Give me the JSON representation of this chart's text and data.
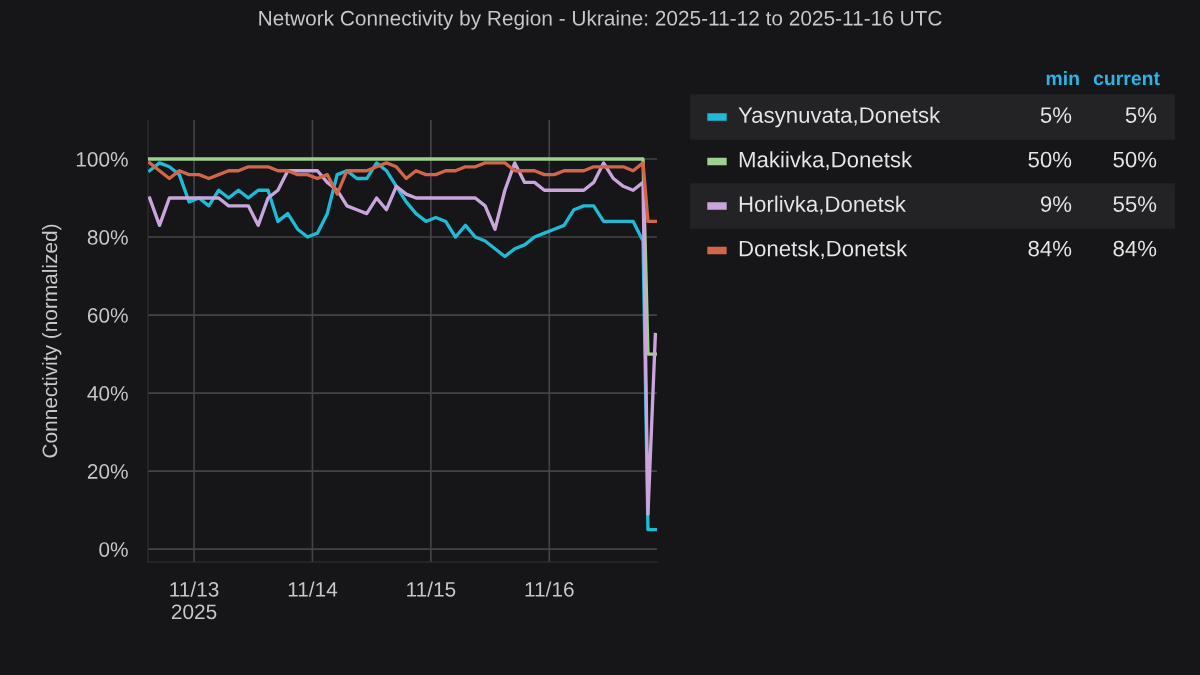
{
  "chart_data": {
    "type": "line",
    "title": "Network Connectivity by Region - Ukraine: 2025-11-12 to 2025-11-16 UTC",
    "ylabel": "Connectivity (normalized)",
    "x": [
      "2025-11-12T15:00",
      "2025-11-12T17:00",
      "2025-11-12T19:00",
      "2025-11-12T21:00",
      "2025-11-12T23:00",
      "2025-11-13T01:00",
      "2025-11-13T03:00",
      "2025-11-13T05:00",
      "2025-11-13T07:00",
      "2025-11-13T09:00",
      "2025-11-13T11:00",
      "2025-11-13T13:00",
      "2025-11-13T15:00",
      "2025-11-13T17:00",
      "2025-11-13T19:00",
      "2025-11-13T21:00",
      "2025-11-13T23:00",
      "2025-11-14T01:00",
      "2025-11-14T03:00",
      "2025-11-14T05:00",
      "2025-11-14T07:00",
      "2025-11-14T09:00",
      "2025-11-14T11:00",
      "2025-11-14T13:00",
      "2025-11-14T15:00",
      "2025-11-14T17:00",
      "2025-11-14T19:00",
      "2025-11-14T21:00",
      "2025-11-14T23:00",
      "2025-11-15T01:00",
      "2025-11-15T03:00",
      "2025-11-15T05:00",
      "2025-11-15T07:00",
      "2025-11-15T09:00",
      "2025-11-15T11:00",
      "2025-11-15T13:00",
      "2025-11-15T15:00",
      "2025-11-15T17:00",
      "2025-11-15T19:00",
      "2025-11-15T21:00",
      "2025-11-15T23:00",
      "2025-11-16T01:00",
      "2025-11-16T03:00",
      "2025-11-16T05:00",
      "2025-11-16T07:00",
      "2025-11-16T09:00",
      "2025-11-16T11:00",
      "2025-11-16T13:00",
      "2025-11-16T15:00",
      "2025-11-16T17:00",
      "2025-11-16T19:00",
      "2025-11-16T20:00",
      "2025-11-16T21:30"
    ],
    "series": [
      {
        "name": "Yasynuvata,Donetsk",
        "color": "#1fbad6",
        "values": [
          97,
          99,
          98,
          96,
          89,
          90,
          88,
          92,
          90,
          92,
          90,
          92,
          92,
          84,
          86,
          82,
          80,
          81,
          86,
          96,
          97,
          95,
          95,
          99,
          97,
          93,
          89,
          86,
          84,
          85,
          84,
          80,
          83,
          80,
          79,
          77,
          75,
          77,
          78,
          80,
          81,
          82,
          83,
          87,
          88,
          88,
          84,
          84,
          84,
          84,
          79,
          5,
          5
        ]
      },
      {
        "name": "Makiivka,Donetsk",
        "color": "#9fd08f",
        "values": [
          100,
          100,
          100,
          100,
          100,
          100,
          100,
          100,
          100,
          100,
          100,
          100,
          100,
          100,
          100,
          100,
          100,
          100,
          100,
          100,
          100,
          100,
          100,
          100,
          100,
          100,
          100,
          100,
          100,
          100,
          100,
          100,
          100,
          100,
          100,
          100,
          100,
          100,
          100,
          100,
          100,
          100,
          100,
          100,
          100,
          100,
          100,
          100,
          100,
          100,
          100,
          50,
          50
        ]
      },
      {
        "name": "Horlivka,Donetsk",
        "color": "#c9a5dc",
        "values": [
          90,
          83,
          90,
          90,
          90,
          90,
          90,
          90,
          88,
          88,
          88,
          83,
          90,
          92,
          97,
          97,
          97,
          97,
          94,
          92,
          88,
          87,
          86,
          90,
          87,
          93,
          91,
          90,
          90,
          90,
          90,
          90,
          90,
          90,
          88,
          82,
          92,
          99,
          94,
          94,
          92,
          92,
          92,
          92,
          92,
          94,
          99,
          95,
          93,
          92,
          94,
          9,
          55
        ]
      },
      {
        "name": "Donetsk,Donetsk",
        "color": "#d0664a",
        "values": [
          99,
          97,
          95,
          97,
          96,
          96,
          95,
          96,
          97,
          97,
          98,
          98,
          98,
          97,
          97,
          96,
          96,
          95,
          96,
          91,
          97,
          97,
          97,
          98,
          99,
          98,
          95,
          97,
          96,
          96,
          97,
          97,
          98,
          98,
          99,
          99,
          99,
          97,
          97,
          97,
          96,
          96,
          97,
          97,
          97,
          98,
          98,
          98,
          98,
          97,
          99,
          84,
          84
        ]
      }
    ],
    "xlim": [
      "2025-11-12T14:40",
      "2025-11-16T21:50"
    ],
    "xticks": [
      {
        "value": "2025-11-13",
        "label": "11/13\n2025"
      },
      {
        "value": "2025-11-14",
        "label": "11/14"
      },
      {
        "value": "2025-11-15",
        "label": "11/15"
      },
      {
        "value": "2025-11-16",
        "label": "11/16"
      }
    ],
    "ylim": [
      -3.3,
      110
    ],
    "yticks": [
      {
        "value": 0,
        "label": "0%"
      },
      {
        "value": 20,
        "label": "20%"
      },
      {
        "value": 40,
        "label": "40%"
      },
      {
        "value": 60,
        "label": "60%"
      },
      {
        "value": 80,
        "label": "80%"
      },
      {
        "value": 100,
        "label": "100%"
      }
    ],
    "grid": true,
    "legend": "right",
    "line_style": "solid",
    "marker": "none",
    "annotations": [
      "min",
      "current",
      "5%",
      "5%",
      "50%",
      "50%",
      "9%",
      "55%",
      "84%",
      "84%"
    ]
  }
}
